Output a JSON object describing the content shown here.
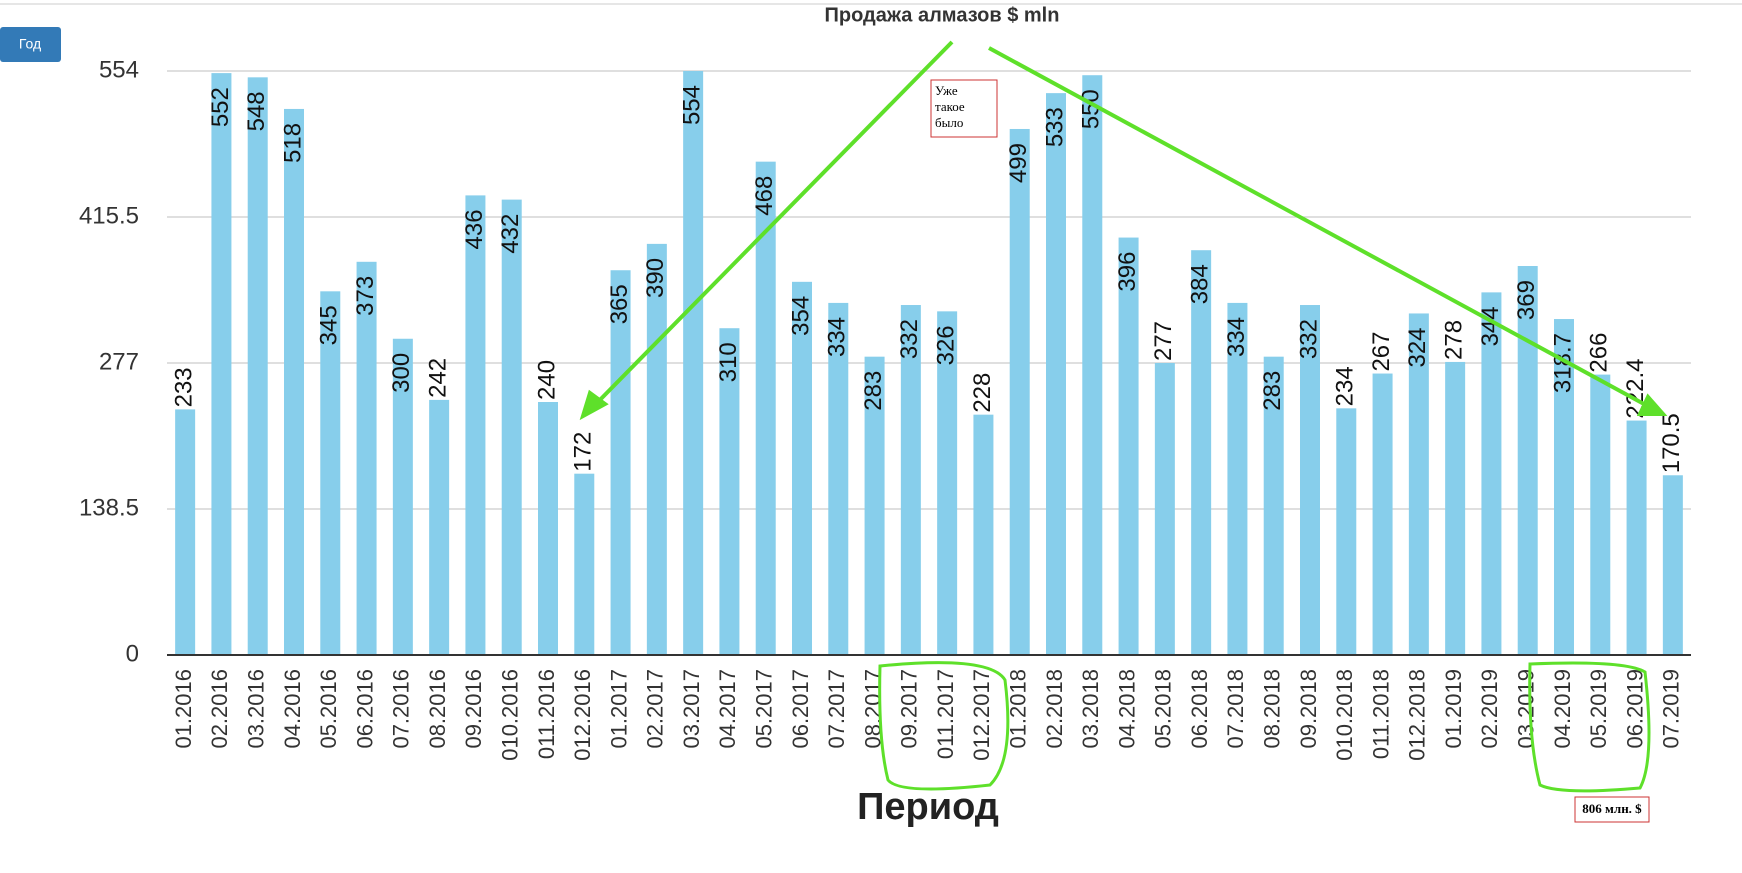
{
  "button": "Год",
  "chart_data": {
    "type": "bar",
    "title": "Продажа алмазов $ mln",
    "x_label": "Период",
    "categories": [
      "01.2016",
      "02.2016",
      "03.2016",
      "04.2016",
      "05.2016",
      "06.2016",
      "07.2016",
      "08.2016",
      "09.2016",
      "010.2016",
      "011.2016",
      "012.2016",
      "01.2017",
      "02.2017",
      "03.2017",
      "04.2017",
      "05.2017",
      "06.2017",
      "07.2017",
      "08.2017",
      "09.2017",
      "011.2017",
      "012.2017",
      "01.2018",
      "02.2018",
      "03.2018",
      "04.2018",
      "05.2018",
      "06.2018",
      "07.2018",
      "08.2018",
      "09.2018",
      "010.2018",
      "011.2018",
      "012.2018",
      "01.2019",
      "02.2019",
      "03.2019",
      "04.2019",
      "05.2019",
      "06.2019",
      "07.2019"
    ],
    "values": [
      233,
      552,
      548,
      518,
      345,
      373,
      300,
      242,
      436,
      432,
      240,
      172,
      365,
      390,
      554,
      310,
      468,
      354,
      334,
      283,
      332,
      326,
      228,
      499,
      533,
      550,
      396,
      277,
      384,
      334,
      283,
      332,
      234,
      267,
      324,
      278,
      344,
      369,
      318.7,
      266,
      222.4,
      170.5
    ],
    "color": "#87ceeb",
    "ylim": [
      0,
      554
    ],
    "yticks": [
      0,
      138.5,
      277,
      415.5,
      554
    ],
    "grid": true
  },
  "annotations": [
    {
      "lines": [
        "Уже",
        "такое",
        "было"
      ]
    },
    {
      "lines": [
        "806 млн. $"
      ]
    }
  ]
}
